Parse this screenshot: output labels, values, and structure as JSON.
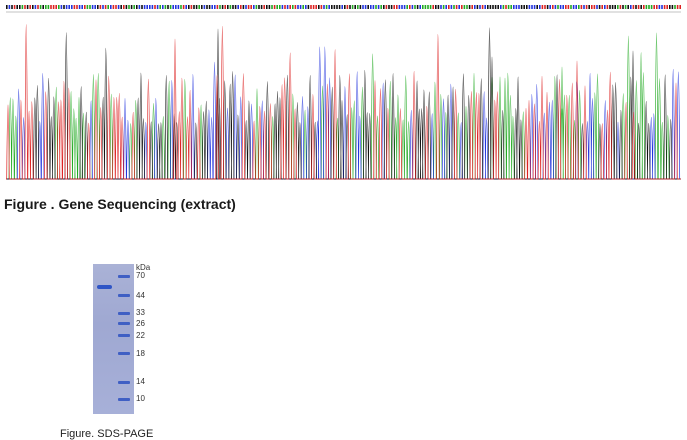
{
  "figure_sequencing": {
    "caption": "Figure . Gene Sequencing (extract)",
    "trace_colors": {
      "A": "#22aa22",
      "C": "#2233dd",
      "G": "#111111",
      "T": "#dd2222"
    }
  },
  "figure_sds_page": {
    "caption": "Figure. SDS-PAGE",
    "unit_label": "kDa",
    "marker_weights": [
      "70",
      "44",
      "33",
      "26",
      "22",
      "18",
      "14",
      "10"
    ],
    "sample_band_kda": 55,
    "gel_color": "#a3acd5",
    "band_color": "#2f55c6"
  }
}
